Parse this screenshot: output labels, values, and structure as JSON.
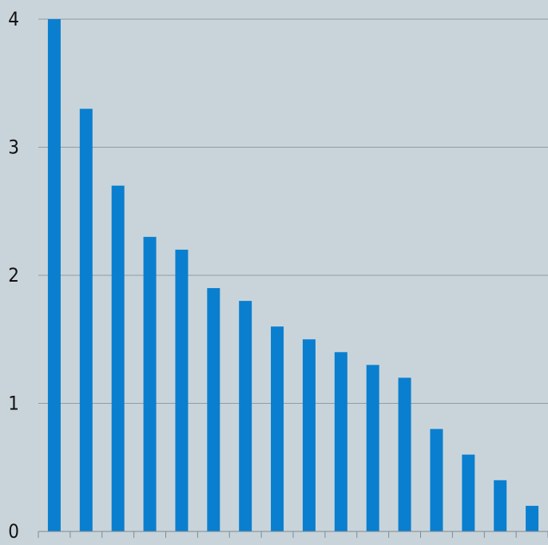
{
  "chart_data": {
    "type": "bar",
    "categories": [
      "",
      "",
      "",
      "",
      "",
      "",
      "",
      "",
      "",
      "",
      "",
      "",
      "",
      "",
      "",
      ""
    ],
    "values": [
      4.0,
      3.3,
      2.7,
      2.3,
      2.2,
      1.9,
      1.8,
      1.6,
      1.5,
      1.4,
      1.3,
      1.2,
      0.8,
      0.6,
      0.4,
      0.2
    ],
    "title": "",
    "xlabel": "",
    "ylabel": "",
    "ylim": [
      0,
      4
    ],
    "yticks": [
      "0",
      "1",
      "2",
      "3",
      "4"
    ],
    "grid": true,
    "legend": "none"
  },
  "colors": {
    "background": "#c9d4da",
    "bar": "#0a7fcf",
    "gridline": "#8f9ca3",
    "axis": "#7d8a91"
  }
}
